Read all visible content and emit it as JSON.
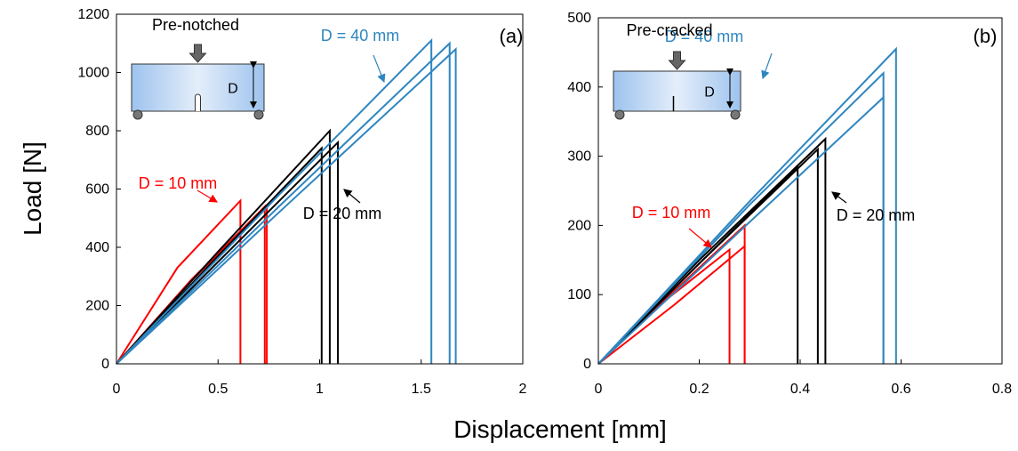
{
  "chart_data": [
    {
      "type": "line",
      "panel_label": "(a)",
      "inset_label": "Pre-notched",
      "inset_dim": "D",
      "ylabel": "Load [N]",
      "xlabel": "Displacement [mm]",
      "xlim": [
        0,
        2
      ],
      "xticks": [
        0,
        0.5,
        1,
        1.5,
        2
      ],
      "ylim": [
        0,
        1200
      ],
      "yticks": [
        0,
        200,
        400,
        600,
        800,
        1000,
        1200
      ],
      "series": [
        {
          "name": "D = 10 mm",
          "color": "#ff0000",
          "curves": [
            {
              "x": [
                0,
                0.3,
                0.61,
                0.61
              ],
              "y": [
                0,
                330,
                560,
                0
              ]
            },
            {
              "x": [
                0,
                0.37,
                0.73,
                0.73
              ],
              "y": [
                0,
                285,
                540,
                0
              ]
            },
            {
              "x": [
                0,
                0.37,
                0.74,
                0.74
              ],
              "y": [
                0,
                290,
                545,
                0
              ]
            }
          ]
        },
        {
          "name": "D = 20 mm",
          "color": "#000000",
          "curves": [
            {
              "x": [
                0,
                0.5,
                1.01,
                1.01
              ],
              "y": [
                0,
                370,
                740,
                0
              ]
            },
            {
              "x": [
                0,
                0.5,
                1.05,
                1.05
              ],
              "y": [
                0,
                385,
                800,
                0
              ]
            },
            {
              "x": [
                0,
                0.5,
                1.09,
                1.09
              ],
              "y": [
                0,
                350,
                760,
                0
              ]
            }
          ]
        },
        {
          "name": "D = 40 mm",
          "color": "#2e86c1",
          "curves": [
            {
              "x": [
                0,
                0.8,
                1.55,
                1.55
              ],
              "y": [
                0,
                580,
                1110,
                0
              ]
            },
            {
              "x": [
                0,
                0.8,
                1.64,
                1.64
              ],
              "y": [
                0,
                540,
                1100,
                0
              ]
            },
            {
              "x": [
                0,
                0.8,
                1.67,
                1.67
              ],
              "y": [
                0,
                520,
                1080,
                0
              ]
            }
          ]
        }
      ]
    },
    {
      "type": "line",
      "panel_label": "(b)",
      "inset_label": "Pre-cracked",
      "inset_dim": "D",
      "xlim": [
        0,
        0.8
      ],
      "xticks": [
        0,
        0.2,
        0.4,
        0.6,
        0.8
      ],
      "ylim": [
        0,
        500
      ],
      "yticks": [
        0,
        100,
        200,
        300,
        400,
        500
      ],
      "series": [
        {
          "name": "D = 10 mm",
          "color": "#ff0000",
          "curves": [
            {
              "x": [
                0,
                0.13,
                0.26,
                0.26
              ],
              "y": [
                0,
                90,
                165,
                0
              ]
            },
            {
              "x": [
                0,
                0.15,
                0.29,
                0.29
              ],
              "y": [
                0,
                105,
                200,
                0
              ]
            },
            {
              "x": [
                0,
                0.15,
                0.29,
                0.29
              ],
              "y": [
                0,
                85,
                170,
                0
              ]
            }
          ]
        },
        {
          "name": "D = 20 mm",
          "color": "#000000",
          "curves": [
            {
              "x": [
                0,
                0.2,
                0.395,
                0.395
              ],
              "y": [
                0,
                145,
                285,
                0
              ]
            },
            {
              "x": [
                0,
                0.2,
                0.435,
                0.435
              ],
              "y": [
                0,
                145,
                310,
                0
              ]
            },
            {
              "x": [
                0,
                0.2,
                0.45,
                0.45
              ],
              "y": [
                0,
                150,
                325,
                0
              ]
            }
          ]
        },
        {
          "name": "D = 40 mm",
          "color": "#2e86c1",
          "curves": [
            {
              "x": [
                0,
                0.3,
                0.565,
                0.565
              ],
              "y": [
                0,
                230,
                420,
                0
              ]
            },
            {
              "x": [
                0,
                0.3,
                0.565,
                0.565
              ],
              "y": [
                0,
                205,
                385,
                0
              ]
            },
            {
              "x": [
                0,
                0.3,
                0.59,
                0.59
              ],
              "y": [
                0,
                235,
                455,
                0
              ]
            }
          ]
        }
      ]
    }
  ]
}
